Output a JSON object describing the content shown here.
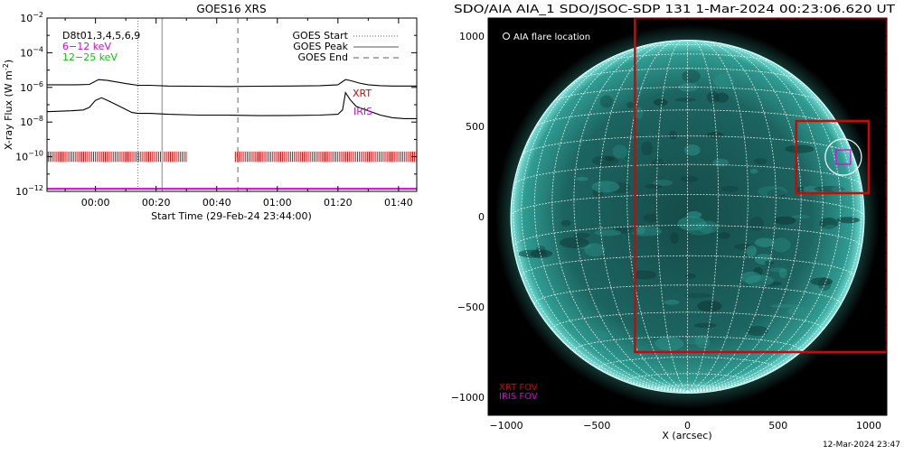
{
  "chart_data": [
    {
      "type": "line",
      "title": "GOES16 XRS",
      "ylabel": "X-ray Flux (W m",
      "ylabel_sup": "-2",
      "ylabel_end": ")",
      "xlabel": "Start Time (29-Feb-24 23:44:00)",
      "x_unit": "minutes after 23:44",
      "xlim": [
        0,
        122
      ],
      "y_log_exponents": [
        -12,
        -2
      ],
      "ytick_exponents": [
        -2,
        -4,
        -6,
        -8,
        -10,
        -12
      ],
      "xticks": [
        {
          "minute": 16,
          "label": "00:00"
        },
        {
          "minute": 36,
          "label": "00:20"
        },
        {
          "minute": 56,
          "label": "00:40"
        },
        {
          "minute": 76,
          "label": "01:00"
        },
        {
          "minute": 96,
          "label": "01:20"
        },
        {
          "minute": 116,
          "label": "01:40"
        }
      ],
      "legend_left": [
        {
          "text": "D8t01,3,4,5,6,9",
          "color": "#000000"
        },
        {
          "text": "6−12 keV",
          "color": "#e000e0"
        },
        {
          "text": "12−25 keV",
          "color": "#00cc00"
        }
      ],
      "legend_right": [
        {
          "text": "GOES Start",
          "style": "dotted"
        },
        {
          "text": "GOES Peak",
          "style": "solid"
        },
        {
          "text": "GOES End",
          "style": "dashed"
        }
      ],
      "event_lines": [
        {
          "minute": 30,
          "style": "dotted"
        },
        {
          "minute": 38,
          "style": "solid"
        },
        {
          "minute": 63,
          "style": "dashed"
        }
      ],
      "series": [
        {
          "color": "#000000",
          "x": [
            0,
            10,
            14,
            17,
            20,
            26,
            30,
            34,
            40,
            50,
            60,
            70,
            80,
            90,
            96,
            98.5,
            100,
            103,
            106,
            110,
            114,
            118,
            122
          ],
          "log_y": [
            -5.85,
            -5.85,
            -5.83,
            -5.55,
            -5.6,
            -5.78,
            -5.88,
            -5.88,
            -5.92,
            -5.93,
            -5.95,
            -5.93,
            -5.92,
            -5.9,
            -5.85,
            -5.55,
            -5.6,
            -5.75,
            -5.85,
            -5.9,
            -5.92,
            -5.92,
            -5.92
          ]
        },
        {
          "color": "#000000",
          "x": [
            0,
            8,
            12,
            14,
            16,
            18,
            20,
            24,
            28,
            30,
            34,
            40,
            50,
            60,
            70,
            80,
            90,
            96,
            97.5,
            98.5,
            100,
            102,
            106,
            110,
            114,
            118,
            122
          ],
          "log_y": [
            -7.4,
            -7.35,
            -7.3,
            -7.15,
            -6.75,
            -6.6,
            -6.75,
            -7.1,
            -7.45,
            -7.5,
            -7.5,
            -7.55,
            -7.6,
            -7.6,
            -7.63,
            -7.62,
            -7.6,
            -7.55,
            -7.3,
            -6.3,
            -6.7,
            -7.1,
            -7.35,
            -7.6,
            -7.75,
            -7.8,
            -7.8
          ]
        },
        {
          "color": "#e000e0",
          "x": [
            0,
            122
          ],
          "log_y": [
            -11.85,
            -11.85
          ]
        }
      ],
      "data_gaps": [
        [
          46,
          62
        ]
      ],
      "annotations": [
        {
          "text": "XRT",
          "color": "#dd0000"
        },
        {
          "text": "IRIS",
          "color": "#e000e0"
        }
      ],
      "colors": {
        "event_bars": "#dd0000"
      }
    },
    {
      "type": "image",
      "title": "SDO/AIA AIA_1 SDO/JSOC-SDP 131  1-Mar-2024 00:23:06.620 UT",
      "xlabel": "X (arcsec)",
      "ylabel": "",
      "xlim": [
        -1100,
        1100
      ],
      "ylim": [
        -1100,
        1100
      ],
      "ticks": [
        {
          "value": -1000,
          "label": "−1000"
        },
        {
          "value": -500,
          "label": "−500"
        },
        {
          "value": 0,
          "label": "0"
        },
        {
          "value": 500,
          "label": "500"
        },
        {
          "value": 1000,
          "label": "1000"
        }
      ],
      "legend_top": "AIA flare location",
      "legend_bottom": [
        {
          "text": "XRT FOV",
          "color": "#dd0000"
        },
        {
          "text": "IRIS FOV",
          "color": "#e000e0"
        }
      ],
      "xrt_fov_small": [
        600,
        1000,
        130,
        530
      ],
      "xrt_fov_large": [
        -290,
        1100,
        -750,
        1100
      ],
      "iris_fov": [
        820,
        900,
        290,
        370
      ],
      "flare_location": [
        860,
        330
      ],
      "colors": {
        "disk": "#3bb5a8",
        "background": "#000000"
      }
    }
  ],
  "footer": {
    "timestamp": "12-Mar-2024 23:47"
  }
}
